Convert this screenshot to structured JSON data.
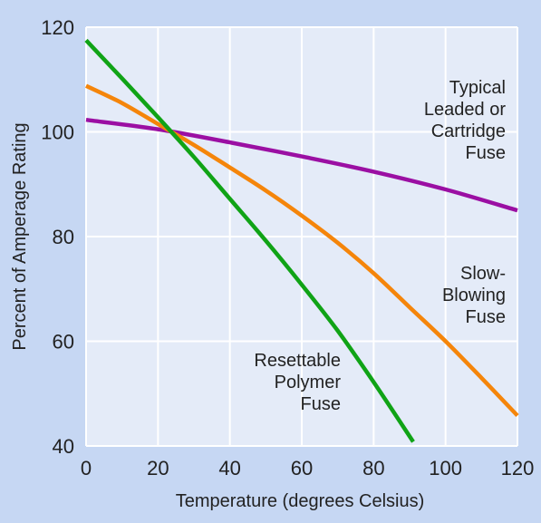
{
  "chart_data": {
    "type": "line",
    "title": "",
    "xlabel": "Temperature (degrees Celsius)",
    "ylabel": "Percent of Amperage Rating",
    "xlim": [
      0,
      120
    ],
    "ylim": [
      40,
      120
    ],
    "xticks": [
      0,
      20,
      40,
      60,
      80,
      100,
      120
    ],
    "yticks": [
      40,
      60,
      80,
      100,
      120
    ],
    "grid": true,
    "legend": "none",
    "background_color": "#c6d7f3",
    "plot_background_color": "#e4ebf8",
    "grid_color": "#ffffff",
    "series": [
      {
        "label_lines": [
          "Typical",
          "Leaded or",
          "Cartridge",
          "Fuse"
        ],
        "color": "#9b0fa3",
        "x": [
          0,
          20,
          40,
          60,
          80,
          100,
          120
        ],
        "y": [
          102.3,
          100.5,
          98,
          95.3,
          92.4,
          89,
          85
        ]
      },
      {
        "label_lines": [
          "Slow-",
          "Blowing",
          "Fuse"
        ],
        "color": "#f5850a",
        "x": [
          0,
          10,
          20,
          30,
          40,
          50,
          60,
          70,
          80,
          90,
          100,
          110,
          120
        ],
        "y": [
          108.8,
          105.5,
          101.5,
          97.5,
          93.2,
          88.8,
          84,
          78.8,
          73,
          66.5,
          60,
          53,
          45.8
        ]
      },
      {
        "label_lines": [
          "Resettable",
          "Polymer",
          "Fuse"
        ],
        "color": "#10a316",
        "x": [
          0,
          10,
          20,
          30,
          40,
          50,
          60,
          70,
          80,
          91
        ],
        "y": [
          117.5,
          110.2,
          102.8,
          95.2,
          87.2,
          79.2,
          70.8,
          62,
          52.2,
          40.8
        ]
      }
    ]
  }
}
